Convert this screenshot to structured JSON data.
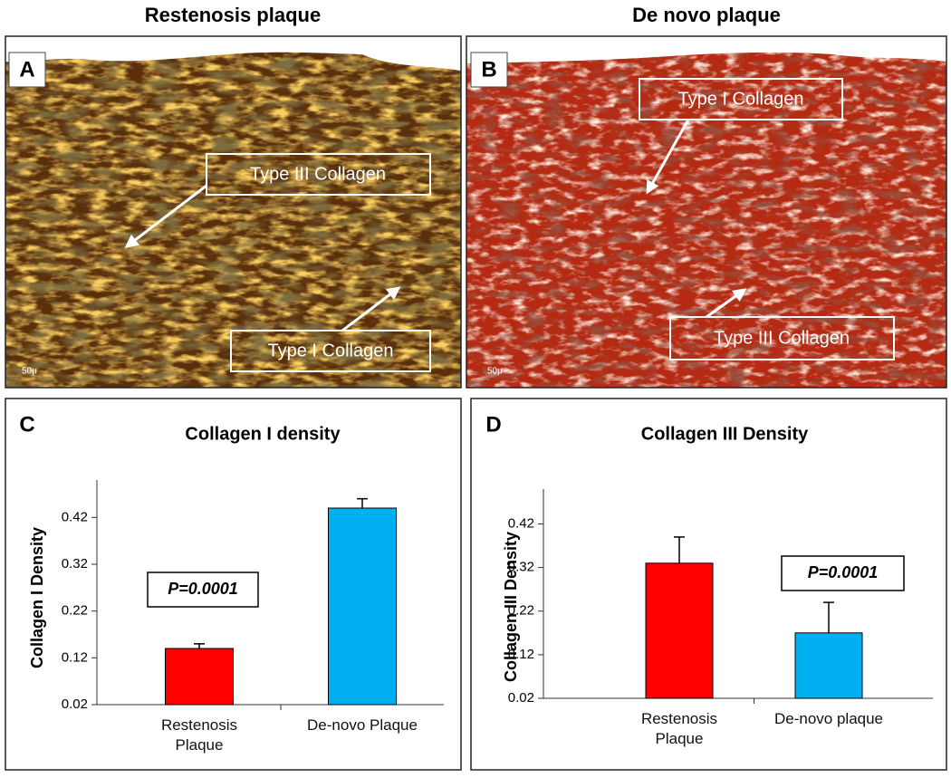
{
  "panels": [
    {
      "letter": "A",
      "title": "Restenosis plaque",
      "annotations": [
        "Type III Collagen",
        "Type I Collagen"
      ],
      "scale_bar": "50μ"
    },
    {
      "letter": "B",
      "title": "De novo plaque",
      "annotations": [
        "Type I Collagen",
        "Type III Collagen"
      ],
      "scale_bar": "50μ"
    }
  ],
  "chart_data": [
    {
      "type": "bar",
      "letter": "C",
      "title": "Collagen I density",
      "ylabel": "Collagen I Density",
      "categories": [
        "Restenosis Plaque",
        "De-novo Plaque"
      ],
      "values": [
        0.14,
        0.44
      ],
      "errors": [
        0.01,
        0.02
      ],
      "colors": [
        "#ff0000",
        "#00b0f0"
      ],
      "annotation": "P=0.0001",
      "ylim": [
        0.02,
        0.5
      ],
      "yticks": [
        0.02,
        0.12,
        0.22,
        0.32,
        0.42
      ]
    },
    {
      "type": "bar",
      "letter": "D",
      "title": "Collagen III Density",
      "ylabel": "Collagen III Density",
      "categories": [
        "Restenosis Plaque",
        "De-novo plaque"
      ],
      "values": [
        0.33,
        0.17
      ],
      "errors": [
        0.06,
        0.07
      ],
      "colors": [
        "#ff0000",
        "#00b0f0"
      ],
      "annotation": "P=0.0001",
      "ylim": [
        0.02,
        0.5
      ],
      "yticks": [
        0.02,
        0.12,
        0.22,
        0.32,
        0.42
      ]
    }
  ]
}
